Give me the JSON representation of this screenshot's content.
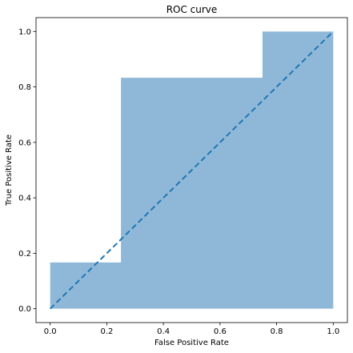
{
  "chart_data": {
    "type": "area",
    "title": "ROC curve",
    "xlabel": "False Positive Rate",
    "ylabel": "True Positive Rate",
    "xlim": [
      -0.05,
      1.05
    ],
    "ylim": [
      -0.05,
      1.05
    ],
    "xticks": [
      0.0,
      0.2,
      0.4,
      0.6,
      0.8,
      1.0
    ],
    "yticks": [
      0.0,
      0.2,
      0.4,
      0.6,
      0.8,
      1.0
    ],
    "xtick_labels": [
      "0.0",
      "0.2",
      "0.4",
      "0.6",
      "0.8",
      "1.0"
    ],
    "ytick_labels": [
      "0.0",
      "0.2",
      "0.4",
      "0.6",
      "0.8",
      "1.0"
    ],
    "grid": false,
    "series": [
      {
        "kind": "step-area",
        "color": "#8fb8d8",
        "points": [
          {
            "x": 0.0,
            "y": 0.167
          },
          {
            "x": 0.25,
            "y": 0.167
          },
          {
            "x": 0.25,
            "y": 0.833
          },
          {
            "x": 0.75,
            "y": 0.833
          },
          {
            "x": 0.75,
            "y": 1.0
          },
          {
            "x": 1.0,
            "y": 1.0
          }
        ]
      },
      {
        "kind": "dashed-line",
        "color": "#1f77b4",
        "points": [
          {
            "x": 0.0,
            "y": 0.0
          },
          {
            "x": 1.0,
            "y": 1.0
          }
        ]
      }
    ]
  }
}
